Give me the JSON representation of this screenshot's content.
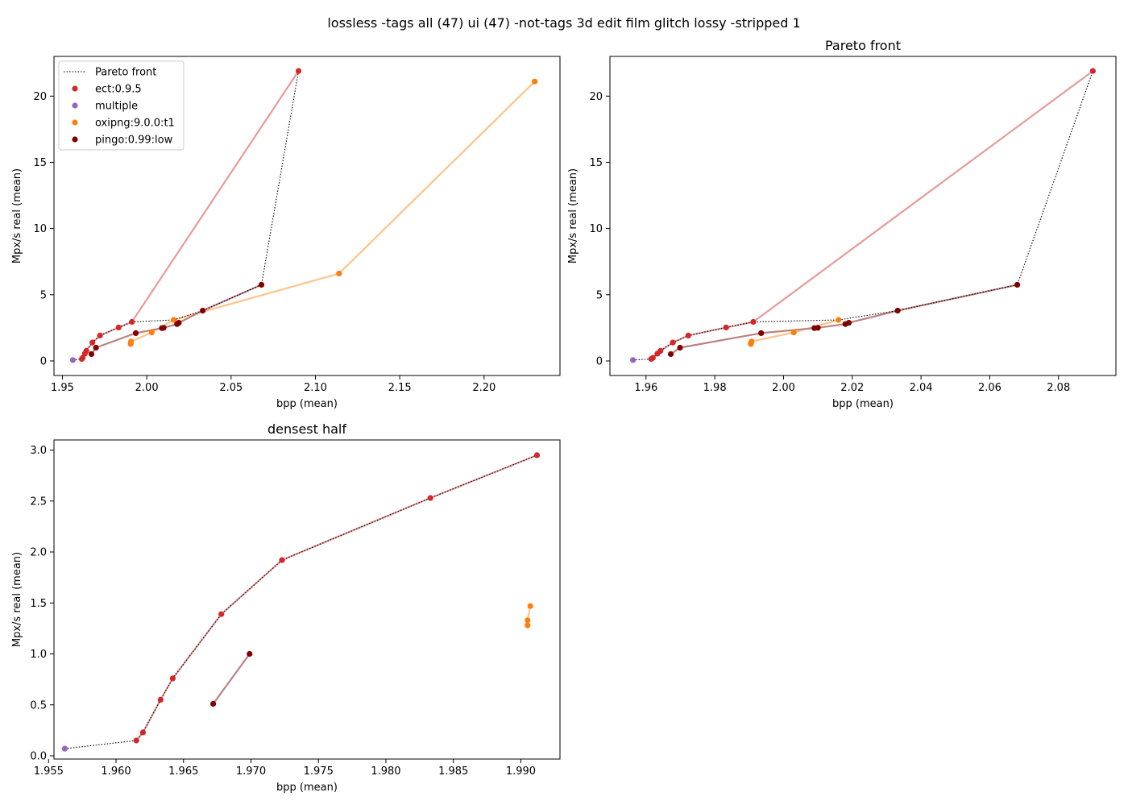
{
  "suptitle": "lossless -tags all (47) ui (47) -not-tags 3d edit film glitch lossy -stripped 1",
  "colors": {
    "ect": "#d62728",
    "ect_line": "#e8999a",
    "multiple": "#9467bd",
    "oxipng": "#ff7f0e",
    "oxipng_line": "#ffc387",
    "pingo": "#800000",
    "pingo_line": "#c08080",
    "pareto": "#000000"
  },
  "chart_data": [
    {
      "type": "scatter",
      "title": "",
      "xlabel": "bpp (mean)",
      "ylabel": "Mpx/s real (mean)",
      "xlim": [
        1.945,
        2.245
      ],
      "ylim": [
        -1.1,
        23.0
      ],
      "xticks": [
        1.95,
        2.0,
        2.05,
        2.1,
        2.15,
        2.2
      ],
      "xtick_labels": [
        "1.95",
        "2.00",
        "2.05",
        "2.10",
        "2.15",
        "2.20"
      ],
      "yticks": [
        0,
        5,
        10,
        15,
        20
      ],
      "ytick_labels": [
        "0",
        "5",
        "10",
        "15",
        "20"
      ],
      "legend": {
        "placement": "top-left",
        "entries": [
          "Pareto front",
          "ect:0.9.5",
          "multiple",
          "oxipng:9.0.0:t1",
          "pingo:0.99:low"
        ]
      },
      "pareto": [
        [
          1.9562,
          0.07
        ],
        [
          1.9615,
          0.15
        ],
        [
          1.962,
          0.23
        ],
        [
          1.9633,
          0.55
        ],
        [
          1.9642,
          0.76
        ],
        [
          1.9678,
          1.39
        ],
        [
          1.9723,
          1.92
        ],
        [
          1.9833,
          2.53
        ],
        [
          1.9912,
          2.95
        ],
        [
          2.016,
          3.1
        ],
        [
          2.0332,
          3.8
        ],
        [
          2.068,
          5.75
        ],
        [
          2.09,
          21.9
        ]
      ],
      "series": [
        {
          "name": "ect:0.9.5",
          "key": "ect",
          "line": [
            [
              1.9615,
              0.15
            ],
            [
              1.962,
              0.23
            ],
            [
              1.9633,
              0.55
            ],
            [
              1.9642,
              0.76
            ],
            [
              1.9678,
              1.39
            ],
            [
              1.9723,
              1.92
            ],
            [
              1.9833,
              2.53
            ],
            [
              1.9912,
              2.95
            ],
            [
              2.09,
              21.9
            ]
          ],
          "points": [
            [
              1.9615,
              0.15
            ],
            [
              1.962,
              0.23
            ],
            [
              1.9633,
              0.55
            ],
            [
              1.9642,
              0.76
            ],
            [
              1.9678,
              1.39
            ],
            [
              1.9723,
              1.92
            ],
            [
              1.9833,
              2.53
            ],
            [
              1.9912,
              2.95
            ],
            [
              2.09,
              21.9
            ]
          ]
        },
        {
          "name": "multiple",
          "key": "multiple",
          "line": [],
          "points": [
            [
              1.9562,
              0.07
            ]
          ]
        },
        {
          "name": "oxipng:9.0.0:t1",
          "key": "oxipng",
          "line": [
            [
              1.9905,
              1.28
            ],
            [
              1.9905,
              1.33
            ],
            [
              1.9907,
              1.47
            ],
            [
              2.003,
              2.15
            ],
            [
              2.016,
              3.1
            ],
            [
              2.114,
              6.6
            ],
            [
              2.23,
              21.1
            ]
          ],
          "points": [
            [
              1.9905,
              1.28
            ],
            [
              1.9905,
              1.33
            ],
            [
              1.9907,
              1.47
            ],
            [
              2.003,
              2.15
            ],
            [
              2.016,
              3.1
            ],
            [
              2.114,
              6.6
            ],
            [
              2.23,
              21.1
            ]
          ]
        },
        {
          "name": "pingo:0.99:low",
          "key": "pingo",
          "line": [
            [
              1.9672,
              0.51
            ],
            [
              1.9699,
              1.0
            ],
            [
              1.9935,
              2.1
            ],
            [
              2.009,
              2.48
            ],
            [
              2.01,
              2.5
            ],
            [
              2.018,
              2.78
            ],
            [
              2.019,
              2.88
            ],
            [
              2.0332,
              3.8
            ],
            [
              2.068,
              5.75
            ]
          ],
          "points": [
            [
              1.9672,
              0.51
            ],
            [
              1.9699,
              1.0
            ],
            [
              1.9935,
              2.1
            ],
            [
              2.009,
              2.48
            ],
            [
              2.01,
              2.5
            ],
            [
              2.018,
              2.78
            ],
            [
              2.019,
              2.88
            ],
            [
              2.0332,
              3.8
            ],
            [
              2.068,
              5.75
            ]
          ]
        }
      ]
    },
    {
      "type": "scatter",
      "title": "Pareto front",
      "xlabel": "bpp (mean)",
      "ylabel": "Mpx/s real (mean)",
      "xlim": [
        1.9495,
        2.0967
      ],
      "ylim": [
        -1.1,
        23.0
      ],
      "xticks": [
        1.96,
        1.98,
        2.0,
        2.02,
        2.04,
        2.06,
        2.08
      ],
      "xtick_labels": [
        "1.96",
        "1.98",
        "2.00",
        "2.02",
        "2.04",
        "2.06",
        "2.08"
      ],
      "yticks": [
        0,
        5,
        10,
        15,
        20
      ],
      "ytick_labels": [
        "0",
        "5",
        "10",
        "15",
        "20"
      ],
      "pareto": [
        [
          1.9562,
          0.07
        ],
        [
          1.9615,
          0.15
        ],
        [
          1.962,
          0.23
        ],
        [
          1.9633,
          0.55
        ],
        [
          1.9642,
          0.76
        ],
        [
          1.9678,
          1.39
        ],
        [
          1.9723,
          1.92
        ],
        [
          1.9833,
          2.53
        ],
        [
          1.9912,
          2.95
        ],
        [
          2.016,
          3.1
        ],
        [
          2.0332,
          3.8
        ],
        [
          2.068,
          5.75
        ],
        [
          2.09,
          21.9
        ]
      ],
      "series": [
        {
          "name": "ect:0.9.5",
          "key": "ect",
          "line": [
            [
              1.9615,
              0.15
            ],
            [
              1.962,
              0.23
            ],
            [
              1.9633,
              0.55
            ],
            [
              1.9642,
              0.76
            ],
            [
              1.9678,
              1.39
            ],
            [
              1.9723,
              1.92
            ],
            [
              1.9833,
              2.53
            ],
            [
              1.9912,
              2.95
            ],
            [
              2.09,
              21.9
            ]
          ],
          "points": [
            [
              1.9615,
              0.15
            ],
            [
              1.962,
              0.23
            ],
            [
              1.9633,
              0.55
            ],
            [
              1.9642,
              0.76
            ],
            [
              1.9678,
              1.39
            ],
            [
              1.9723,
              1.92
            ],
            [
              1.9833,
              2.53
            ],
            [
              1.9912,
              2.95
            ],
            [
              2.09,
              21.9
            ]
          ]
        },
        {
          "name": "multiple",
          "key": "multiple",
          "line": [],
          "points": [
            [
              1.9562,
              0.07
            ]
          ]
        },
        {
          "name": "oxipng:9.0.0:t1",
          "key": "oxipng",
          "line": [
            [
              1.9905,
              1.28
            ],
            [
              1.9905,
              1.33
            ],
            [
              1.9907,
              1.47
            ],
            [
              2.003,
              2.15
            ],
            [
              2.016,
              3.1
            ]
          ],
          "points": [
            [
              1.9905,
              1.28
            ],
            [
              1.9905,
              1.33
            ],
            [
              1.9907,
              1.47
            ],
            [
              2.003,
              2.15
            ],
            [
              2.016,
              3.1
            ]
          ]
        },
        {
          "name": "pingo:0.99:low",
          "key": "pingo",
          "line": [
            [
              1.9672,
              0.51
            ],
            [
              1.9699,
              1.0
            ],
            [
              1.9935,
              2.1
            ],
            [
              2.009,
              2.48
            ],
            [
              2.01,
              2.5
            ],
            [
              2.018,
              2.78
            ],
            [
              2.019,
              2.88
            ],
            [
              2.0332,
              3.8
            ],
            [
              2.068,
              5.75
            ]
          ],
          "points": [
            [
              1.9672,
              0.51
            ],
            [
              1.9699,
              1.0
            ],
            [
              1.9935,
              2.1
            ],
            [
              2.009,
              2.48
            ],
            [
              2.01,
              2.5
            ],
            [
              2.018,
              2.78
            ],
            [
              2.019,
              2.88
            ],
            [
              2.0332,
              3.8
            ],
            [
              2.068,
              5.75
            ]
          ]
        }
      ]
    },
    {
      "type": "scatter",
      "title": "densest half",
      "xlabel": "bpp (mean)",
      "ylabel": "Mpx/s real (mean)",
      "xlim": [
        1.9554,
        1.9929
      ],
      "ylim": [
        -0.0316,
        3.0991
      ],
      "xticks": [
        1.955,
        1.96,
        1.965,
        1.97,
        1.975,
        1.98,
        1.985,
        1.99
      ],
      "xtick_labels": [
        "1.955",
        "1.960",
        "1.965",
        "1.970",
        "1.975",
        "1.980",
        "1.985",
        "1.990"
      ],
      "yticks": [
        0.0,
        0.5,
        1.0,
        1.5,
        2.0,
        2.5,
        3.0
      ],
      "ytick_labels": [
        "0.0",
        "0.5",
        "1.0",
        "1.5",
        "2.0",
        "2.5",
        "3.0"
      ],
      "pareto": [
        [
          1.9562,
          0.07
        ],
        [
          1.9615,
          0.15
        ],
        [
          1.962,
          0.23
        ],
        [
          1.9633,
          0.55
        ],
        [
          1.9642,
          0.76
        ],
        [
          1.9678,
          1.39
        ],
        [
          1.9723,
          1.92
        ],
        [
          1.9833,
          2.53
        ],
        [
          1.9912,
          2.95
        ]
      ],
      "series": [
        {
          "name": "ect:0.9.5",
          "key": "ect",
          "line": [
            [
              1.9615,
              0.15
            ],
            [
              1.962,
              0.23
            ],
            [
              1.9633,
              0.55
            ],
            [
              1.9642,
              0.76
            ],
            [
              1.9678,
              1.39
            ],
            [
              1.9723,
              1.92
            ],
            [
              1.9833,
              2.53
            ],
            [
              1.9912,
              2.95
            ]
          ],
          "points": [
            [
              1.9615,
              0.15
            ],
            [
              1.962,
              0.23
            ],
            [
              1.9633,
              0.55
            ],
            [
              1.9642,
              0.76
            ],
            [
              1.9678,
              1.39
            ],
            [
              1.9723,
              1.92
            ],
            [
              1.9833,
              2.53
            ],
            [
              1.9912,
              2.95
            ]
          ]
        },
        {
          "name": "multiple",
          "key": "multiple",
          "line": [],
          "points": [
            [
              1.9562,
              0.07
            ]
          ]
        },
        {
          "name": "oxipng:9.0.0:t1",
          "key": "oxipng",
          "line": [
            [
              1.9905,
              1.28
            ],
            [
              1.9905,
              1.33
            ],
            [
              1.9907,
              1.47
            ]
          ],
          "points": [
            [
              1.9905,
              1.28
            ],
            [
              1.9905,
              1.33
            ],
            [
              1.9907,
              1.47
            ]
          ]
        },
        {
          "name": "pingo:0.99:low",
          "key": "pingo",
          "line": [
            [
              1.9672,
              0.51
            ],
            [
              1.9699,
              1.0
            ]
          ],
          "points": [
            [
              1.9672,
              0.51
            ],
            [
              1.9699,
              1.0
            ]
          ]
        }
      ]
    }
  ]
}
